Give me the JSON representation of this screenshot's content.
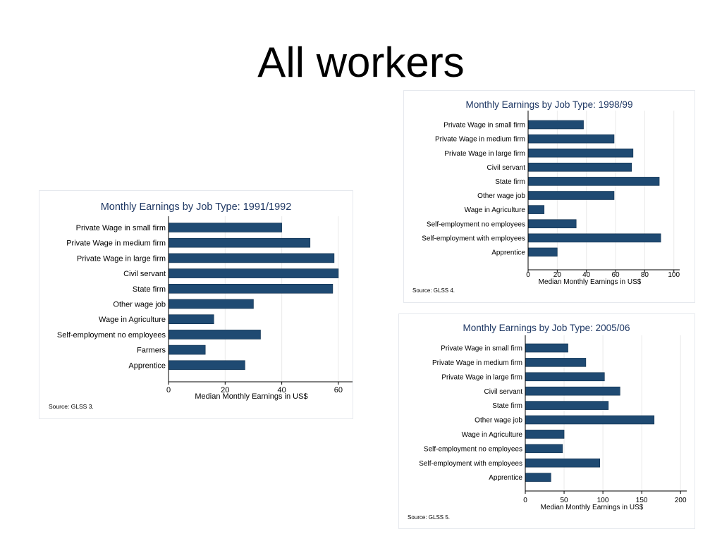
{
  "slide": {
    "title": "All workers"
  },
  "colors": {
    "bar": "#1f4a72",
    "grid": "#eaeaea",
    "axis": "#000000",
    "title": "#1f3864",
    "text": "#000000"
  },
  "chart_data": [
    {
      "type": "bar",
      "orientation": "horizontal",
      "title": "Monthly Earnings by Job Type: 1991/1992",
      "xlabel": "Median Monthly Earnings in US$",
      "source": "Source: GLSS 3.",
      "categories": [
        "Private Wage in small firm",
        "Private Wage in medium firm",
        "Private Wage in large firm",
        "Civil servant",
        "State firm",
        "Other wage job",
        "Wage in Agriculture",
        "Self-employment no employees",
        "Farmers",
        "Apprentice"
      ],
      "values": [
        40,
        50,
        58.5,
        60,
        58,
        30,
        16,
        32.5,
        13,
        27
      ],
      "xlim": [
        0,
        65
      ],
      "xticks": [
        0,
        20,
        40,
        60
      ],
      "grid": true
    },
    {
      "type": "bar",
      "orientation": "horizontal",
      "title": "Monthly Earnings by Job Type: 1998/99",
      "xlabel": "Median Monthly Earnings in US$",
      "source": "Source: GLSS 4.",
      "categories": [
        "Private Wage in small firm",
        "Private Wage in medium firm",
        "Private Wage in large firm",
        "Civil servant",
        "State firm",
        "Other wage job",
        "Wage in Agriculture",
        "Self-employment no employees",
        "Self-employment with employees",
        "Apprentice"
      ],
      "values": [
        38,
        59,
        72,
        71,
        90,
        59,
        11,
        33,
        91,
        20
      ],
      "xlim": [
        0,
        104
      ],
      "xticks": [
        0,
        20,
        40,
        60,
        80,
        100
      ],
      "grid": true
    },
    {
      "type": "bar",
      "orientation": "horizontal",
      "title": "Monthly Earnings by Job Type: 2005/06",
      "xlabel": "Median Monthly Earnings in US$",
      "source": "Source: GLSS 5.",
      "categories": [
        "Private Wage in small firm",
        "Private Wage in medium firm",
        "Private Wage in large firm",
        "Civil servant",
        "State firm",
        "Other wage job",
        "Wage in Agriculture",
        "Self-employment no employees",
        "Self-employment with employees",
        "Apprentice"
      ],
      "values": [
        55,
        78,
        102,
        122,
        107,
        166,
        50,
        48,
        96,
        33
      ],
      "xlim": [
        0,
        208
      ],
      "xticks": [
        0,
        50,
        100,
        150,
        200
      ],
      "grid": true
    }
  ]
}
